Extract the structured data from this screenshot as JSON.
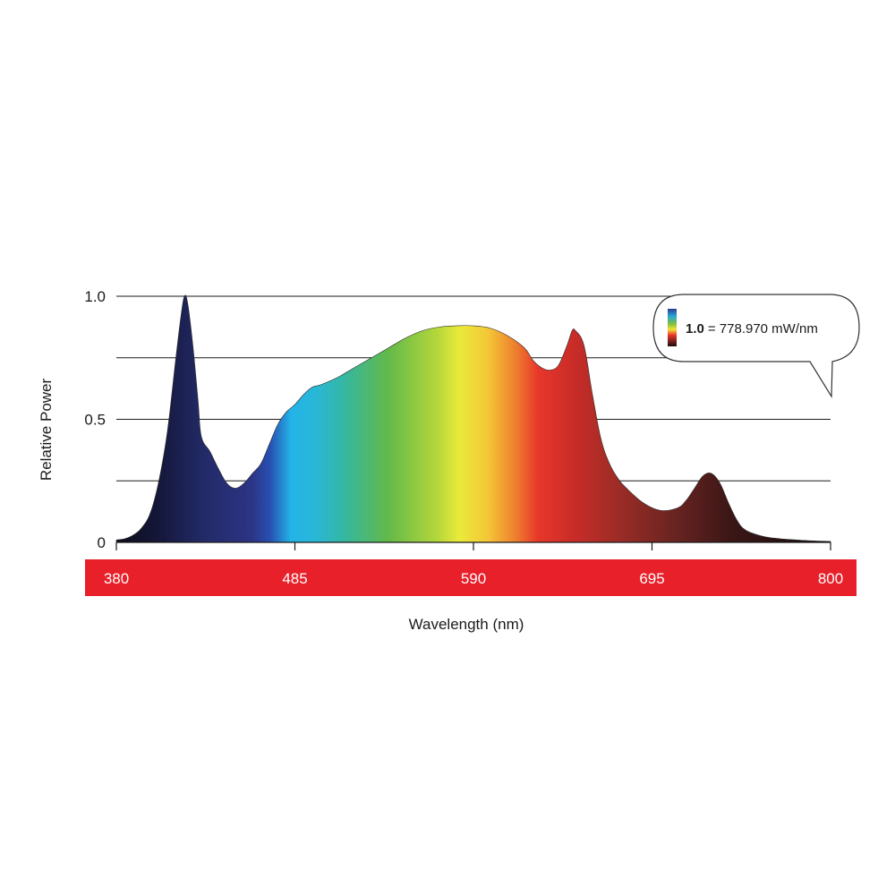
{
  "chart_data": {
    "type": "area",
    "title": "",
    "xlabel": "Wavelength (nm)",
    "ylabel": "Relative Power",
    "xlim": [
      380,
      800
    ],
    "ylim": [
      0,
      1.0
    ],
    "x_ticks": [
      380,
      485,
      590,
      695,
      800
    ],
    "x_tick_labels": [
      "380",
      "485",
      "590",
      "695",
      "800"
    ],
    "y_tick_labels": [
      {
        "value": 0,
        "label": "0"
      },
      {
        "value": 0.5,
        "label": "0.5"
      },
      {
        "value": 1.0,
        "label": "1.0"
      }
    ],
    "gridlines_y": [
      0.25,
      0.5,
      0.75,
      1.0
    ],
    "grid": true,
    "fill": "visible-spectrum gradient (violet-blue to deep red by wavelength)",
    "x": [
      380,
      385,
      390,
      395,
      400,
      405,
      410,
      415,
      418,
      420,
      422,
      425,
      428,
      430,
      435,
      440,
      445,
      450,
      455,
      460,
      465,
      470,
      475,
      480,
      485,
      490,
      495,
      500,
      510,
      520,
      530,
      540,
      550,
      560,
      570,
      580,
      590,
      600,
      610,
      620,
      625,
      630,
      635,
      640,
      645,
      648,
      650,
      655,
      660,
      665,
      670,
      675,
      680,
      690,
      700,
      710,
      715,
      720,
      725,
      730,
      735,
      740,
      745,
      750,
      760,
      770,
      780,
      790,
      800
    ],
    "values": [
      0.01,
      0.015,
      0.03,
      0.06,
      0.12,
      0.25,
      0.45,
      0.75,
      0.92,
      1.0,
      0.97,
      0.8,
      0.58,
      0.43,
      0.37,
      0.3,
      0.24,
      0.22,
      0.24,
      0.28,
      0.32,
      0.4,
      0.48,
      0.53,
      0.56,
      0.6,
      0.63,
      0.64,
      0.67,
      0.71,
      0.75,
      0.79,
      0.83,
      0.86,
      0.875,
      0.88,
      0.88,
      0.87,
      0.84,
      0.79,
      0.74,
      0.71,
      0.7,
      0.72,
      0.8,
      0.86,
      0.86,
      0.8,
      0.6,
      0.42,
      0.32,
      0.26,
      0.22,
      0.16,
      0.13,
      0.14,
      0.17,
      0.22,
      0.27,
      0.28,
      0.24,
      0.16,
      0.09,
      0.05,
      0.025,
      0.015,
      0.01,
      0.006,
      0.004
    ],
    "annotation": {
      "color_bar": true,
      "bold": "1.0",
      "text": "= 778.970 mW/nm"
    }
  }
}
